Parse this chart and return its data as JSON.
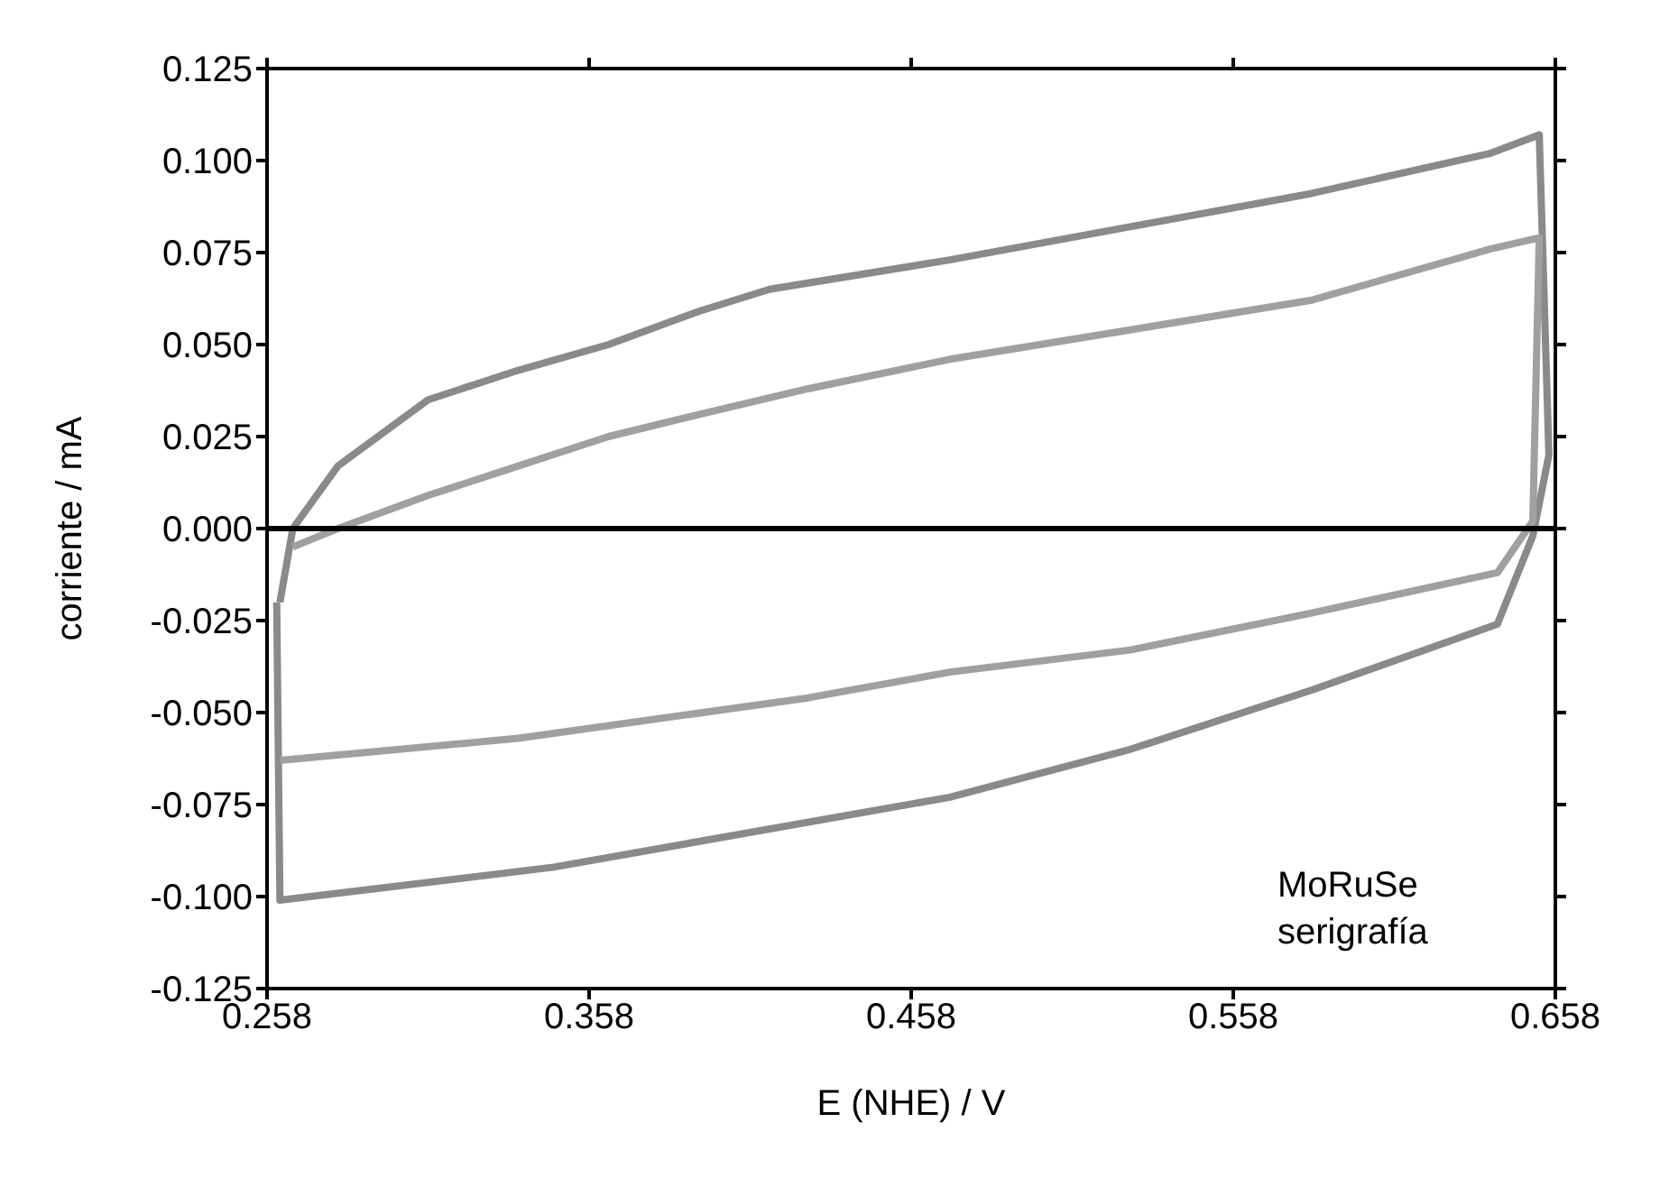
{
  "chart_data": {
    "type": "line",
    "xlabel": "E (NHE) / V",
    "ylabel": "corriente / mA",
    "xlim": [
      0.258,
      0.658
    ],
    "xticks": [
      0.258,
      0.358,
      0.458,
      0.558,
      0.658
    ],
    "ylim": [
      -0.125,
      0.125
    ],
    "yticks": [
      {
        "value": -0.125,
        "label": "-0.125"
      },
      {
        "value": -0.1,
        "label": "-0.100"
      },
      {
        "value": -0.075,
        "label": "-0.075"
      },
      {
        "value": -0.05,
        "label": "-0.050"
      },
      {
        "value": -0.025,
        "label": "-0.025"
      },
      {
        "value": 0,
        "label": "0.000"
      },
      {
        "value": 0.025,
        "label": "0.025"
      },
      {
        "value": 0.05,
        "label": "0.050"
      },
      {
        "value": 0.075,
        "label": "0.075"
      },
      {
        "value": 0.1,
        "label": "0.100"
      },
      {
        "value": 0.125,
        "label": "0.125"
      }
    ],
    "marker": "none",
    "line_style": "solid",
    "ref_lines": [
      {
        "axis": "y",
        "value": 0,
        "color": "#000000"
      }
    ],
    "annotations": [
      "MoRuSe\nserigrafía"
    ],
    "series": [
      {
        "color": "#8a8a8a",
        "x": [
          0.262,
          0.266,
          0.28,
          0.308,
          0.336,
          0.364,
          0.392,
          0.414,
          0.47,
          0.526,
          0.582,
          0.638,
          0.653,
          0.656,
          0.651,
          0.64,
          0.582,
          0.526,
          0.47,
          0.347,
          0.262,
          0.261
        ],
        "values": [
          -0.02,
          0,
          0.017,
          0.035,
          0.043,
          0.05,
          0.059,
          0.065,
          0.073,
          0.082,
          0.091,
          0.102,
          0.107,
          0.02,
          -0.002,
          -0.026,
          -0.044,
          -0.06,
          -0.073,
          -0.092,
          -0.101,
          -0.02
        ]
      },
      {
        "color": "#a0a0a0",
        "x": [
          0.266,
          0.28,
          0.308,
          0.336,
          0.364,
          0.392,
          0.426,
          0.47,
          0.526,
          0.582,
          0.638,
          0.653,
          0.651,
          0.64,
          0.582,
          0.526,
          0.47,
          0.426,
          0.336,
          0.262
        ],
        "values": [
          -0.005,
          0,
          0.009,
          0.017,
          0.025,
          0.031,
          0.038,
          0.046,
          0.054,
          0.062,
          0.076,
          0.079,
          0.002,
          -0.012,
          -0.023,
          -0.033,
          -0.039,
          -0.046,
          -0.057,
          -0.063
        ]
      }
    ]
  }
}
